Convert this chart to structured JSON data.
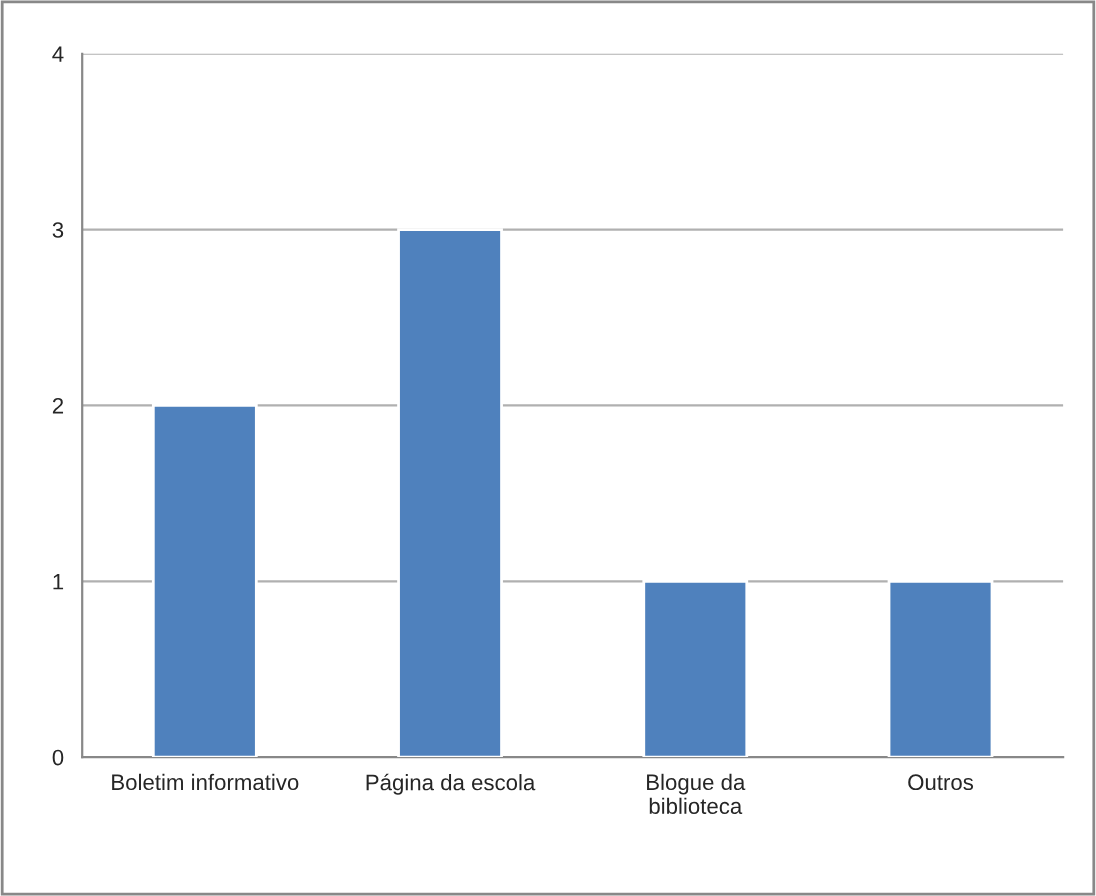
{
  "chart_data": {
    "type": "bar",
    "categories": [
      "Boletim informativo",
      "Página da escola",
      "Blogue da\nbiblioteca",
      "Outros"
    ],
    "values": [
      2,
      3,
      1,
      1
    ],
    "color": "#4f81bd",
    "ylim": [
      0,
      4
    ],
    "yticks": [
      0,
      1,
      2,
      3,
      4
    ],
    "grid": "y",
    "legend": false
  }
}
